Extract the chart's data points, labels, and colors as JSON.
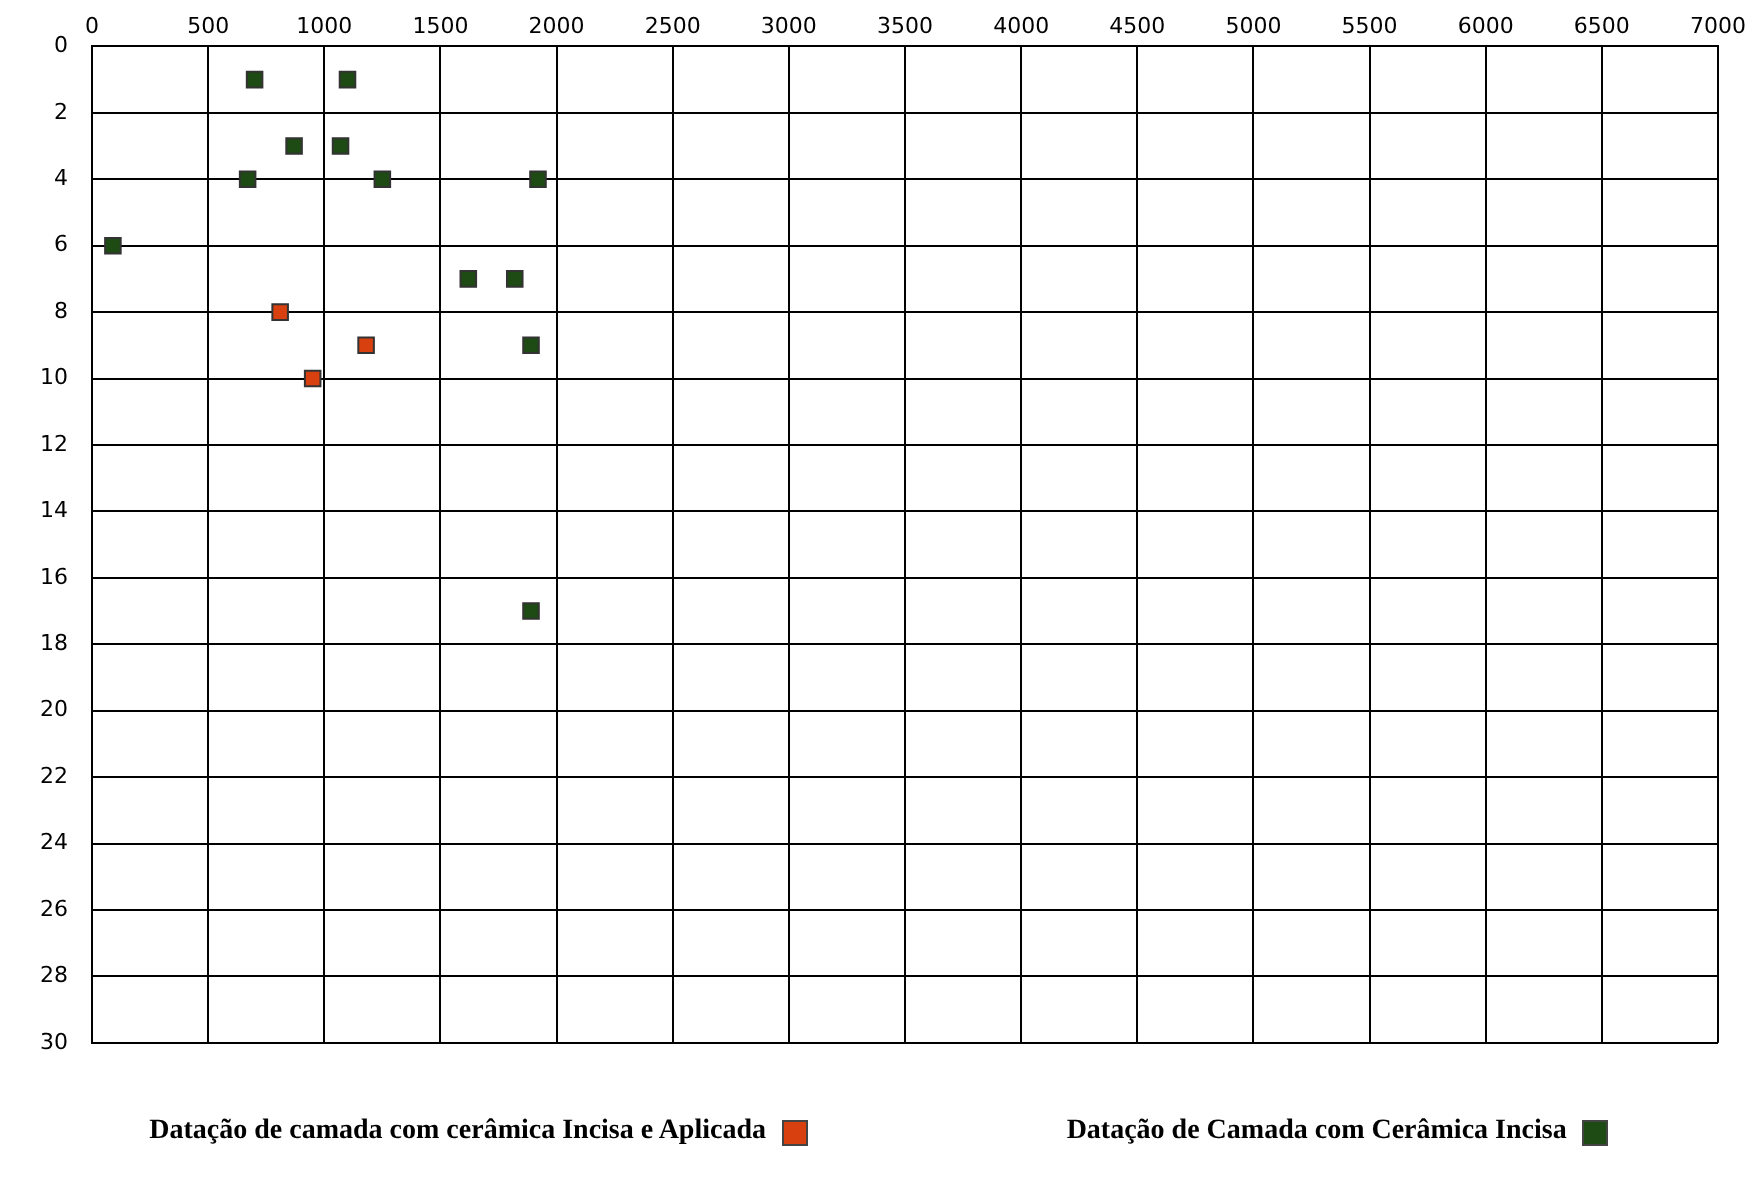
{
  "chart_data": {
    "type": "scatter",
    "xlim": [
      0,
      7000
    ],
    "xticks": [
      0,
      500,
      1000,
      1500,
      2000,
      2500,
      3000,
      3500,
      4000,
      4500,
      5000,
      5500,
      6000,
      6500,
      7000
    ],
    "ylim": [
      30,
      0
    ],
    "yticks": [
      0,
      2,
      4,
      6,
      8,
      10,
      12,
      14,
      16,
      18,
      20,
      22,
      24,
      26,
      28,
      30
    ],
    "grid": true,
    "legend": "bottom",
    "marker": "square",
    "series": [
      {
        "name": "Datação de camada com cerâmica Incisa e Aplicada",
        "color": "#d84010",
        "x": [
          810,
          1180,
          950
        ],
        "values": [
          8,
          9,
          10
        ]
      },
      {
        "name": "Datação de Camada com Cerâmica Incisa",
        "color": "#1e4a14",
        "x": [
          700,
          1100,
          870,
          1070,
          670,
          1250,
          1920,
          90,
          1620,
          1820,
          1890,
          1890
        ],
        "values": [
          1,
          1,
          3,
          3,
          4,
          4,
          4,
          6,
          7,
          7,
          9,
          17
        ]
      }
    ]
  }
}
